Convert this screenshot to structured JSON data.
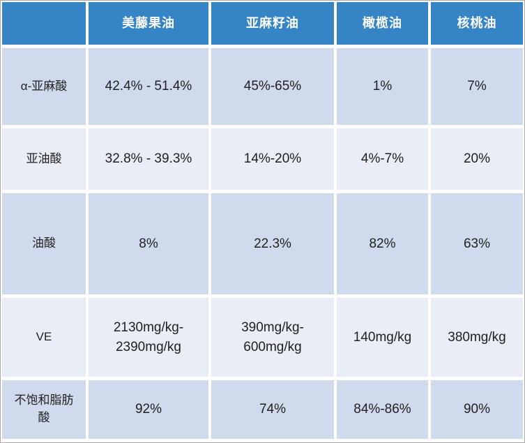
{
  "colors": {
    "header_bg": "#3585c6",
    "header_text": "#ffffff",
    "row_dark": "#cfdbec",
    "row_light": "#e9edf6",
    "gap_bg": "#ffffff",
    "text_color": "#1f1f1f",
    "outer_border": "#aaaaaa"
  },
  "table": {
    "corner": "",
    "columns": [
      "美藤果油",
      "亚麻籽油",
      "橄榄油",
      "核桃油"
    ],
    "rows": [
      {
        "label": "α-亚麻酸",
        "values": [
          "42.4% - 51.4%",
          "45%-65%",
          "1%",
          "7%"
        ]
      },
      {
        "label": "亚油酸",
        "values": [
          "32.8% - 39.3%",
          "14%-20%",
          "4%-7%",
          "20%"
        ]
      },
      {
        "label": "油酸",
        "values": [
          "8%",
          "22.3%",
          "82%",
          "63%"
        ]
      },
      {
        "label": "VE",
        "values": [
          "2130mg/kg-\n2390mg/kg",
          "390mg/kg-\n600mg/kg",
          "140mg/kg",
          "380mg/kg"
        ]
      },
      {
        "label": "不饱和脂肪\n酸",
        "values": [
          "92%",
          "74%",
          "84%-86%",
          "90%"
        ]
      }
    ]
  },
  "chart_data": {
    "type": "table",
    "title": "",
    "columns": [
      "",
      "美藤果油",
      "亚麻籽油",
      "橄榄油",
      "核桃油"
    ],
    "rows": [
      [
        "α-亚麻酸",
        "42.4% - 51.4%",
        "45%-65%",
        "1%",
        "7%"
      ],
      [
        "亚油酸",
        "32.8% - 39.3%",
        "14%-20%",
        "4%-7%",
        "20%"
      ],
      [
        "油酸",
        "8%",
        "22.3%",
        "82%",
        "63%"
      ],
      [
        "VE",
        "2130mg/kg-2390mg/kg",
        "390mg/kg-600mg/kg",
        "140mg/kg",
        "380mg/kg"
      ],
      [
        "不饱和脂肪酸",
        "92%",
        "74%",
        "84%-86%",
        "90%"
      ]
    ]
  }
}
